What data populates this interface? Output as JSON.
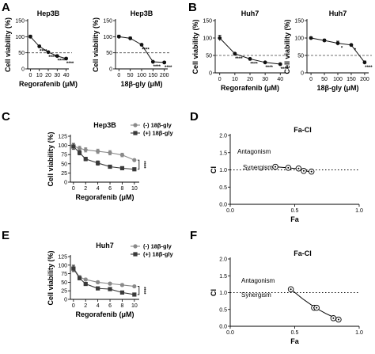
{
  "panel_labels": {
    "A": "A",
    "B": "B",
    "C": "C",
    "D": "D",
    "E": "E",
    "F": "F"
  },
  "colors": {
    "black": "#111111",
    "gray": "#8a8a8a",
    "dark": "#3a3a3a"
  },
  "chart_data": [
    {
      "id": "A1",
      "panel": "A",
      "type": "line",
      "title": "Hep3B",
      "xlabel": "Regorafenib (μM)",
      "ylabel": "Cell viability (%)",
      "x": [
        0,
        10,
        20,
        30,
        40
      ],
      "x_ticks": [
        "0",
        "10",
        "20",
        "30",
        "40"
      ],
      "xlim": [
        -3,
        43
      ],
      "y_ticks": [
        "0",
        "50",
        "100",
        "150"
      ],
      "ylim": [
        0,
        150
      ],
      "series": [
        {
          "values": [
            100,
            70,
            52,
            40,
            32
          ],
          "errors": [
            5,
            4,
            3,
            3,
            3
          ]
        }
      ],
      "sig": [
        "",
        "****",
        "****",
        "****",
        "****"
      ],
      "ref_line": 50
    },
    {
      "id": "A2",
      "panel": "A",
      "type": "line",
      "title": "Hep3B",
      "xlabel": "18β-gly (μM)",
      "ylabel": "Cell viability (%)",
      "x": [
        0,
        50,
        100,
        150,
        200
      ],
      "x_ticks": [
        "0",
        "50",
        "100",
        "150",
        "200"
      ],
      "xlim": [
        -15,
        215
      ],
      "y_ticks": [
        "0",
        "50",
        "100",
        "150"
      ],
      "ylim": [
        0,
        150
      ],
      "series": [
        {
          "values": [
            100,
            95,
            75,
            22,
            20
          ],
          "errors": [
            5,
            4,
            3,
            2,
            2
          ]
        }
      ],
      "sig": [
        "",
        "",
        "****",
        "****",
        "****"
      ],
      "ref_line": 50
    },
    {
      "id": "B1",
      "panel": "B",
      "type": "line",
      "title": "Huh7",
      "xlabel": "Regorafenib (μM)",
      "ylabel": "Cell viability (%)",
      "x": [
        0,
        10,
        20,
        30,
        40
      ],
      "x_ticks": [
        "0",
        "10",
        "20",
        "30",
        "40"
      ],
      "xlim": [
        -3,
        43
      ],
      "y_ticks": [
        "0",
        "50",
        "100",
        "150"
      ],
      "ylim": [
        0,
        150
      ],
      "series": [
        {
          "values": [
            100,
            55,
            40,
            30,
            25
          ],
          "errors": [
            8,
            3,
            3,
            2,
            2
          ]
        }
      ],
      "sig": [
        "",
        "****",
        "****",
        "****",
        "****"
      ],
      "ref_line": 50
    },
    {
      "id": "B2",
      "panel": "B",
      "type": "line",
      "title": "Huh7",
      "xlabel": "18β-gly (μM)",
      "ylabel": "Cell viability (%)",
      "x": [
        0,
        50,
        100,
        150,
        200
      ],
      "x_ticks": [
        "0",
        "50",
        "100",
        "150",
        "200"
      ],
      "xlim": [
        -15,
        215
      ],
      "y_ticks": [
        "0",
        "50",
        "100",
        "150"
      ],
      "ylim": [
        0,
        150
      ],
      "series": [
        {
          "values": [
            100,
            93,
            85,
            80,
            30
          ],
          "errors": [
            3,
            4,
            6,
            3,
            4
          ]
        }
      ],
      "sig": [
        "",
        "",
        "*",
        "*",
        "****"
      ],
      "ref_line": 50
    },
    {
      "id": "C",
      "panel": "C",
      "type": "line",
      "title": "Hep3B",
      "xlabel": "Regorafenib (μM)",
      "ylabel": "Cell viability (%)",
      "x": [
        0,
        1,
        2,
        4,
        6,
        8,
        10
      ],
      "x_ticks": [
        "0",
        "2",
        "4",
        "6",
        "8",
        "10"
      ],
      "x_tick_values": [
        0,
        2,
        4,
        6,
        8,
        10
      ],
      "xlim": [
        -0.5,
        10.8
      ],
      "y_ticks": [
        "0",
        "25",
        "50",
        "75",
        "100",
        "125"
      ],
      "ylim": [
        0,
        125
      ],
      "series": [
        {
          "name": "(-) 18β-gly",
          "color": "#8a8a8a",
          "marker": "circle",
          "values": [
            98,
            92,
            88,
            84,
            80,
            74,
            60
          ],
          "errors": [
            8,
            6,
            6,
            6,
            6,
            5,
            3
          ]
        },
        {
          "name": "(+) 18β-gly",
          "color": "#3a3a3a",
          "marker": "square",
          "values": [
            97,
            80,
            63,
            52,
            42,
            38,
            35
          ],
          "errors": [
            8,
            6,
            5,
            6,
            4,
            3,
            2
          ]
        }
      ],
      "bracket_label": "****"
    },
    {
      "id": "D",
      "panel": "D",
      "type": "scatter",
      "title": "Fa-CI",
      "xlabel": "Fa",
      "ylabel": "CI",
      "x_ticks": [
        "0.0",
        "0.5",
        "1.0"
      ],
      "x_tick_values": [
        0,
        0.5,
        1
      ],
      "xlim": [
        0,
        1
      ],
      "y_ticks": [
        "0.0",
        "0.5",
        "1.0",
        "1.5",
        "2.0"
      ],
      "y_tick_values": [
        0,
        0.5,
        1,
        1.5,
        2
      ],
      "ylim": [
        0,
        2
      ],
      "points": [
        {
          "x": 0.35,
          "y": 1.09
        },
        {
          "x": 0.45,
          "y": 1.06
        },
        {
          "x": 0.53,
          "y": 1.04
        },
        {
          "x": 0.57,
          "y": 0.97
        },
        {
          "x": 0.63,
          "y": 0.95
        }
      ],
      "curve": [
        {
          "x": 0.35,
          "y": 1.09
        },
        {
          "x": 0.45,
          "y": 1.06
        },
        {
          "x": 0.53,
          "y": 1.03
        },
        {
          "x": 0.57,
          "y": 0.98
        },
        {
          "x": 0.63,
          "y": 0.94
        }
      ],
      "ref_line": 1.0,
      "annotations": [
        "Antagonism",
        "Synergism"
      ]
    },
    {
      "id": "E",
      "panel": "E",
      "type": "line",
      "title": "Huh7",
      "xlabel": "Regorafenib (μM)",
      "ylabel": "Cell viability (%)",
      "x": [
        0,
        1,
        2,
        4,
        6,
        8,
        10
      ],
      "x_ticks": [
        "0",
        "2",
        "4",
        "6",
        "8",
        "10"
      ],
      "x_tick_values": [
        0,
        2,
        4,
        6,
        8,
        10
      ],
      "xlim": [
        -0.5,
        10.8
      ],
      "y_ticks": [
        "0",
        "25",
        "50",
        "75",
        "100",
        "125"
      ],
      "ylim": [
        0,
        125
      ],
      "series": [
        {
          "name": "(-) 18β-gly",
          "color": "#8a8a8a",
          "marker": "circle",
          "values": [
            92,
            65,
            58,
            50,
            46,
            42,
            38
          ],
          "errors": [
            9,
            5,
            4,
            4,
            4,
            4,
            3
          ]
        },
        {
          "name": "(+) 18β-gly",
          "color": "#3a3a3a",
          "marker": "square",
          "values": [
            90,
            62,
            45,
            32,
            30,
            20,
            14
          ],
          "errors": [
            9,
            5,
            4,
            3,
            3,
            2,
            2
          ]
        }
      ],
      "bracket_label": "****"
    },
    {
      "id": "F",
      "panel": "F",
      "type": "scatter",
      "title": "Fa-CI",
      "xlabel": "Fa",
      "ylabel": "CI",
      "x_ticks": [
        "0.0",
        "0.5",
        "1.0"
      ],
      "x_tick_values": [
        0,
        0.5,
        1
      ],
      "xlim": [
        0,
        1
      ],
      "y_ticks": [
        "0.0",
        "0.5",
        "1.0",
        "1.5",
        "2.0"
      ],
      "y_tick_values": [
        0,
        0.5,
        1,
        1.5,
        2
      ],
      "ylim": [
        0,
        2
      ],
      "points": [
        {
          "x": 0.47,
          "y": 1.1
        },
        {
          "x": 0.65,
          "y": 0.55
        },
        {
          "x": 0.67,
          "y": 0.55
        },
        {
          "x": 0.8,
          "y": 0.24
        },
        {
          "x": 0.84,
          "y": 0.2
        }
      ],
      "curve": [
        {
          "x": 0.47,
          "y": 1.1
        },
        {
          "x": 0.56,
          "y": 0.82
        },
        {
          "x": 0.66,
          "y": 0.55
        },
        {
          "x": 0.74,
          "y": 0.38
        },
        {
          "x": 0.84,
          "y": 0.2
        }
      ],
      "ref_line": 1.0,
      "annotations": [
        "Antagonism",
        "Synergism"
      ]
    }
  ]
}
